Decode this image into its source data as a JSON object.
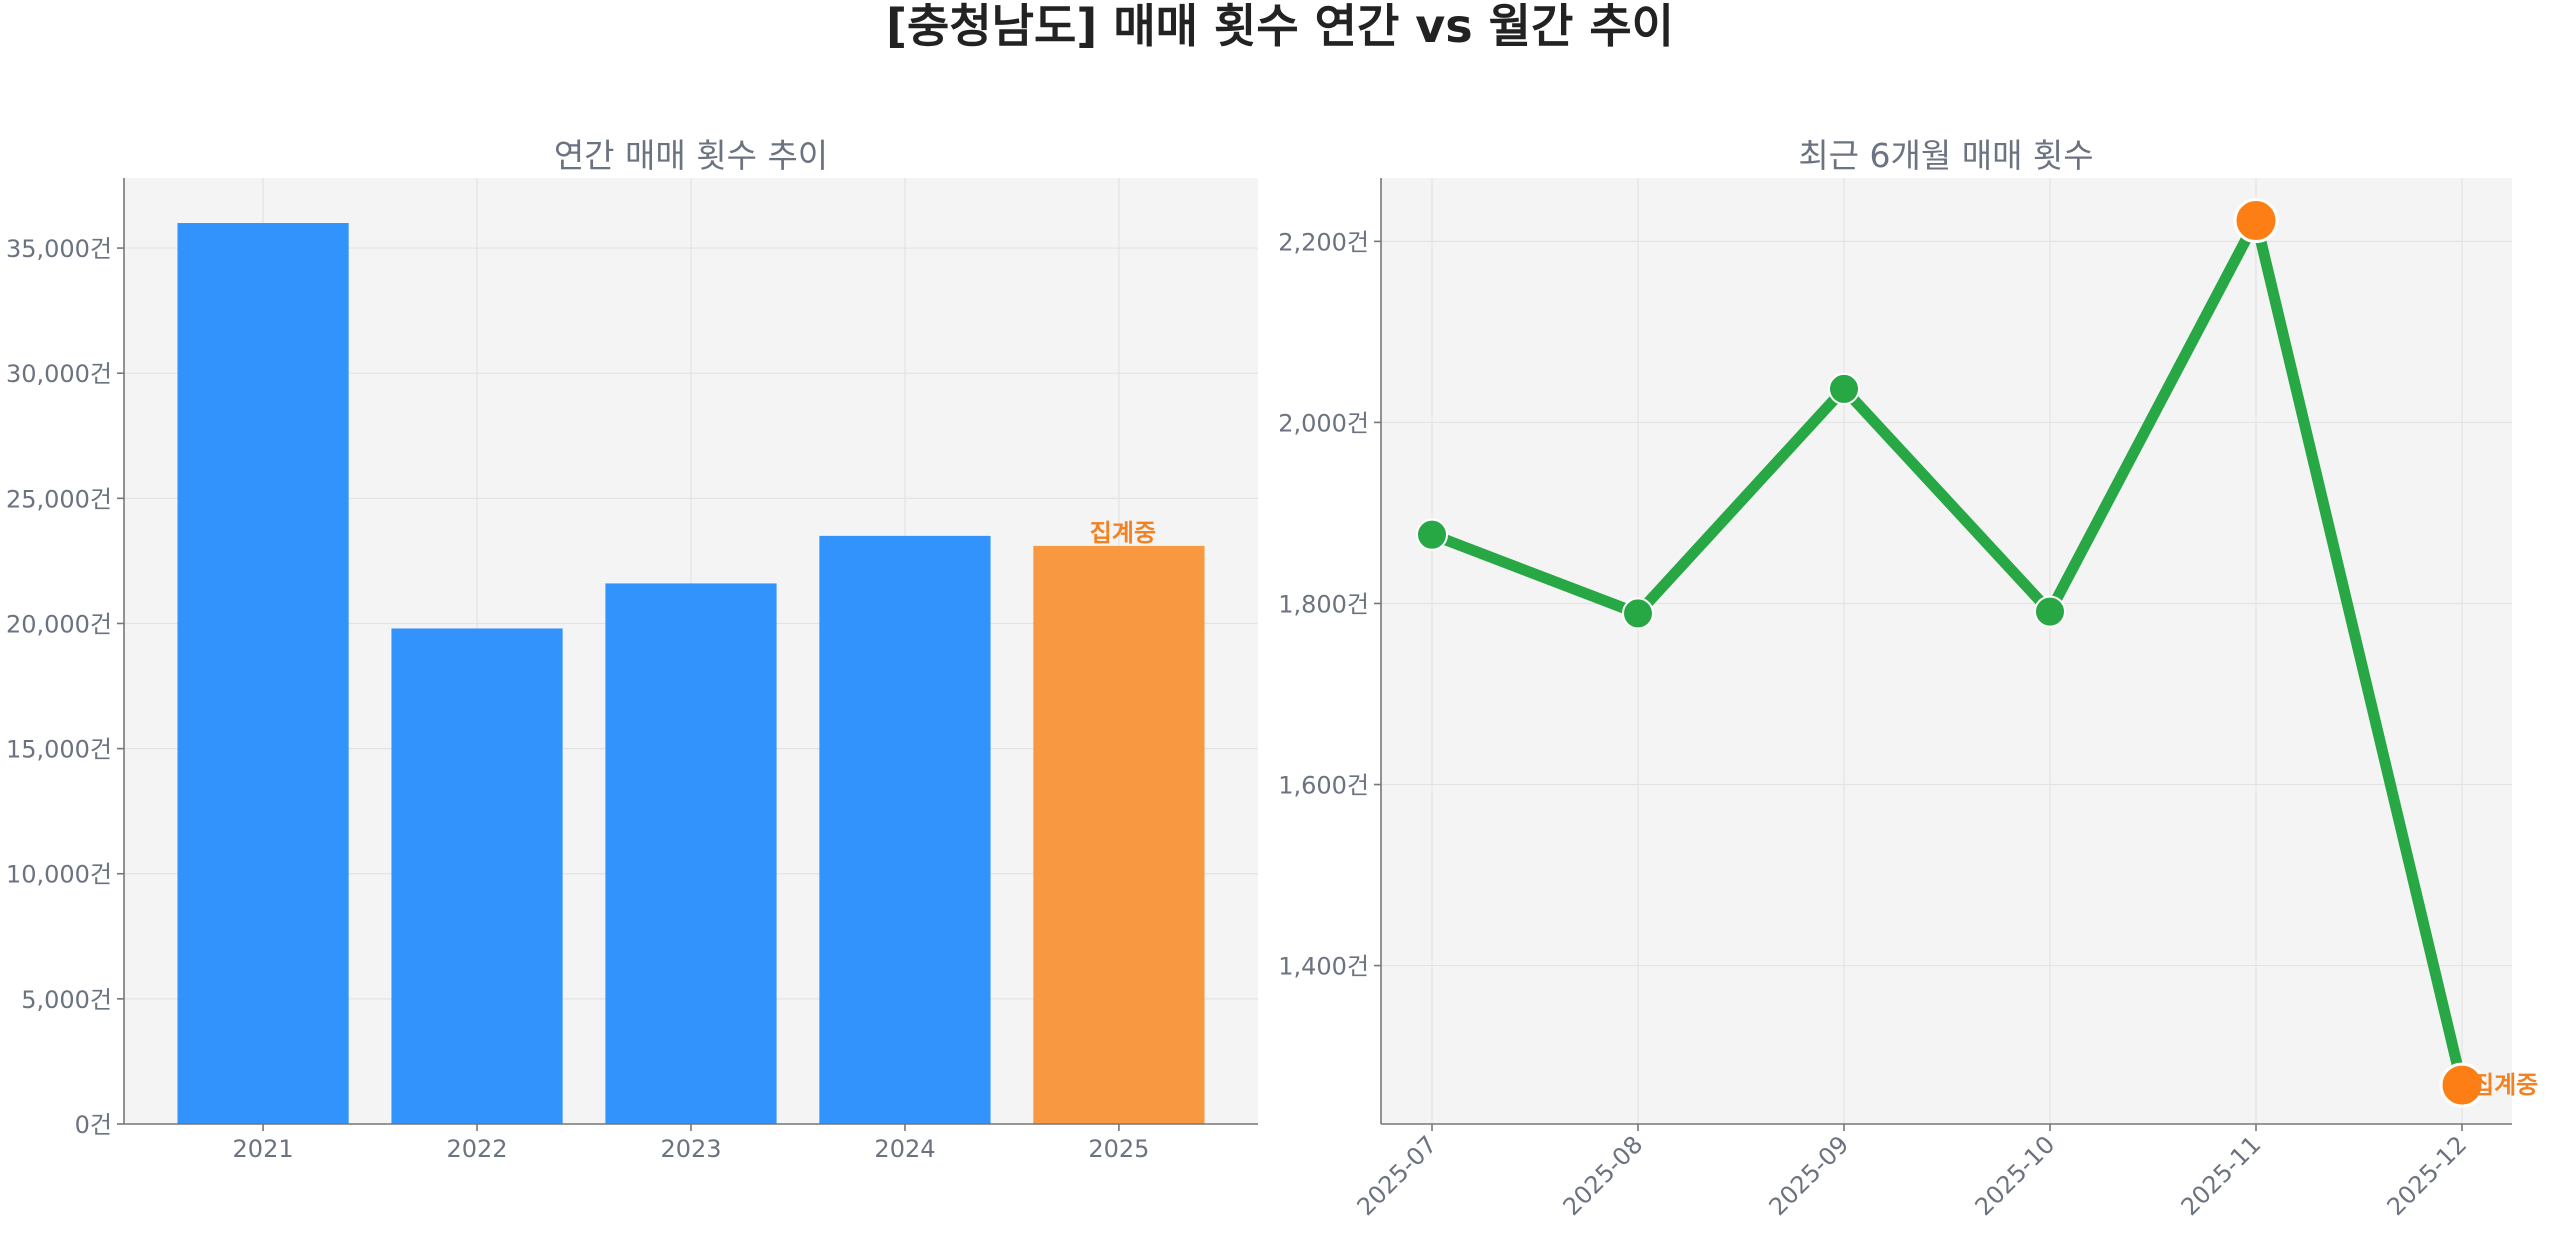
{
  "figure": {
    "title": "[충청남도] 매매 횟수 연간 vs 월간 추이"
  },
  "colors": {
    "bar": "#3193fb",
    "bar_highlight": "#f89841",
    "line": "#28a745",
    "marker_highlight": "#fd7e14",
    "annotation": "#f5801f"
  },
  "chart_data": [
    {
      "type": "bar",
      "title": "연간 매매 횟수 추이",
      "categories": [
        "2021",
        "2022",
        "2023",
        "2024",
        "2025"
      ],
      "values": [
        36000,
        19800,
        21600,
        23500,
        23100
      ],
      "highlight_index": 4,
      "ylim": [
        0,
        37800
      ],
      "yticks": [
        0,
        5000,
        10000,
        15000,
        20000,
        25000,
        30000,
        35000
      ],
      "ytick_labels": [
        "0건",
        "5,000건",
        "10,000건",
        "15,000건",
        "20,000건",
        "25,000건",
        "30,000건",
        "35,000건"
      ],
      "annotation": {
        "index": 4,
        "text": "집계중"
      },
      "grid": true,
      "xlabel": "",
      "ylabel": ""
    },
    {
      "type": "line",
      "title": "최근 6개월 매매 횟수",
      "x": [
        "2025-07",
        "2025-08",
        "2025-09",
        "2025-10",
        "2025-11",
        "2025-12"
      ],
      "values": [
        1876,
        1789,
        2037,
        1791,
        2223,
        1268
      ],
      "highlight_indices": [
        4,
        5
      ],
      "ylim": [
        1225,
        2270
      ],
      "yticks": [
        1400,
        1600,
        1800,
        2000,
        2200
      ],
      "ytick_labels": [
        "1,400건",
        "1,600건",
        "1,800건",
        "2,000건",
        "2,200건"
      ],
      "annotation": {
        "index": 5,
        "text": "집계중"
      },
      "grid": true,
      "xlabel": "",
      "ylabel": ""
    }
  ]
}
